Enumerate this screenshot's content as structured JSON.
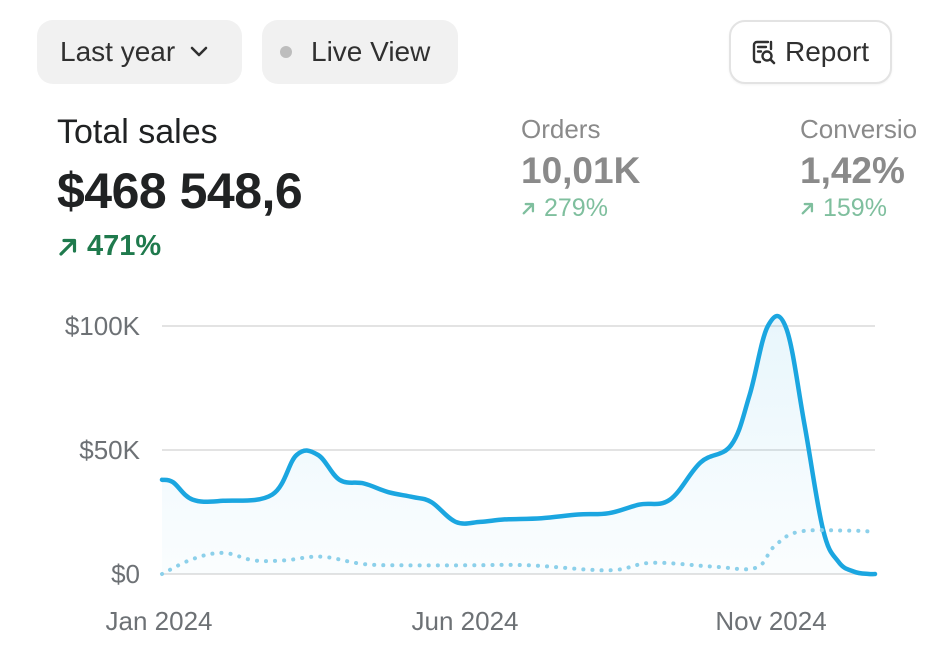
{
  "toolbar": {
    "period_label": "Last year",
    "live_label": "Live View",
    "report_label": "Report"
  },
  "metrics": {
    "total_sales": {
      "label": "Total sales",
      "value": "$468 548,6",
      "change": "471%"
    },
    "orders": {
      "label": "Orders",
      "value": "10,01K",
      "change": "279%"
    },
    "conversion": {
      "label": "Conversio",
      "value": "1,42%",
      "change": "159%"
    }
  },
  "colors": {
    "primary_line": "#1ba6e0",
    "comparison_line": "#8cd0ea",
    "positive": "#1f7a4d",
    "positive_muted": "#7fbf9e"
  },
  "chart_data": {
    "type": "line",
    "title": "",
    "xlabel": "",
    "ylabel": "",
    "y_tick_labels": [
      "$0",
      "$50K",
      "$100K"
    ],
    "y_ticks": [
      0,
      50000,
      100000
    ],
    "ylim": [
      0,
      100000
    ],
    "x_tick_labels": [
      "Jan 2024",
      "Jun 2024",
      "Nov 2024"
    ],
    "x_ticks": [
      0,
      5,
      10
    ],
    "xlim": [
      0,
      11.65
    ],
    "grid": true,
    "series": [
      {
        "style": "solid-area",
        "x": [
          0,
          0.18,
          0.5,
          1,
          1.8,
          2.2,
          2.55,
          2.9,
          3.3,
          3.7,
          4.1,
          4.4,
          4.8,
          5.2,
          5.6,
          6.2,
          6.8,
          7.3,
          7.8,
          8.3,
          8.8,
          9.3,
          9.6,
          9.9,
          10.2,
          10.5,
          10.8,
          11.05,
          11.3,
          11.55,
          11.65
        ],
        "values": [
          38000,
          37000,
          30000,
          29500,
          32000,
          48000,
          48000,
          38000,
          36500,
          33000,
          31000,
          29000,
          21000,
          21000,
          22000,
          22500,
          24000,
          24500,
          28000,
          30000,
          45000,
          52000,
          72000,
          100000,
          99000,
          60000,
          18000,
          5000,
          1000,
          0,
          0
        ]
      },
      {
        "style": "dotted",
        "x": [
          0,
          0.5,
          1,
          1.5,
          2,
          2.6,
          3.3,
          4,
          5,
          6,
          7.3,
          8,
          9,
          9.7,
          10,
          10.4,
          11.2,
          11.65
        ],
        "values": [
          0,
          6000,
          8500,
          5500,
          5500,
          7000,
          4000,
          3500,
          3500,
          3500,
          1500,
          4500,
          3000,
          2500,
          11000,
          17000,
          17500,
          17000
        ]
      }
    ]
  }
}
